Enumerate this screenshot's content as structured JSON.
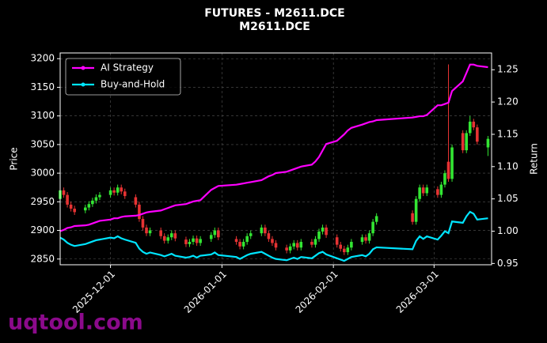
{
  "chart_data": {
    "type": "candlestick",
    "title": "FUTURES - M2611.DCE",
    "subtitle": "M2611.DCE",
    "ylabel": "Price",
    "y2label": "Return",
    "watermark": "uqtool.com",
    "x": [
      "2025-11-17",
      "2025-11-18",
      "2025-11-19",
      "2025-11-20",
      "2025-11-21",
      "2025-11-24",
      "2025-11-25",
      "2025-11-26",
      "2025-11-27",
      "2025-11-28",
      "2025-12-01",
      "2025-12-02",
      "2025-12-03",
      "2025-12-04",
      "2025-12-05",
      "2025-12-08",
      "2025-12-09",
      "2025-12-10",
      "2025-12-11",
      "2025-12-12",
      "2025-12-15",
      "2025-12-16",
      "2025-12-17",
      "2025-12-18",
      "2025-12-19",
      "2025-12-22",
      "2025-12-23",
      "2025-12-24",
      "2025-12-25",
      "2025-12-26",
      "2025-12-29",
      "2025-12-30",
      "2025-12-31",
      "2026-01-05",
      "2026-01-06",
      "2026-01-07",
      "2026-01-08",
      "2026-01-09",
      "2026-01-12",
      "2026-01-13",
      "2026-01-14",
      "2026-01-15",
      "2026-01-16",
      "2026-01-19",
      "2026-01-20",
      "2026-01-21",
      "2026-01-22",
      "2026-01-23",
      "2026-01-26",
      "2026-01-27",
      "2026-01-28",
      "2026-01-29",
      "2026-01-30",
      "2026-02-02",
      "2026-02-03",
      "2026-02-04",
      "2026-02-05",
      "2026-02-06",
      "2026-02-09",
      "2026-02-10",
      "2026-02-11",
      "2026-02-12",
      "2026-02-13",
      "2026-02-23",
      "2026-02-24",
      "2026-02-25",
      "2026-02-26",
      "2026-02-27",
      "2026-03-02",
      "2026-03-03",
      "2026-03-04",
      "2026-03-05",
      "2026-03-06",
      "2026-03-09",
      "2026-03-10",
      "2026-03-11",
      "2026-03-12",
      "2026-03-13",
      "2026-03-16"
    ],
    "candles": {
      "up_color": "#33e633",
      "down_color": "#e63333",
      "open": [
        2955,
        2970,
        2962,
        2945,
        2938,
        2935,
        2940,
        2946,
        2952,
        2958,
        2962,
        2970,
        2966,
        2975,
        2968,
        2958,
        2945,
        2920,
        2905,
        2895,
        2900,
        2890,
        2882,
        2888,
        2895,
        2884,
        2876,
        2880,
        2886,
        2878,
        2885,
        2892,
        2900,
        2885,
        2880,
        2872,
        2880,
        2890,
        2895,
        2905,
        2895,
        2885,
        2878,
        2870,
        2865,
        2872,
        2878,
        2870,
        2880,
        2875,
        2885,
        2898,
        2905,
        2888,
        2875,
        2868,
        2862,
        2870,
        2880,
        2888,
        2882,
        2895,
        2915,
        2930,
        2915,
        2955,
        2975,
        2965,
        2972,
        2962,
        2980,
        3020,
        2990,
        3070,
        3040,
        3070,
        3090,
        3080,
        3045
      ],
      "high": [
        2975,
        2975,
        2967,
        2950,
        2943,
        2945,
        2951,
        2957,
        2963,
        2967,
        2975,
        2975,
        2980,
        2980,
        2973,
        2963,
        2950,
        2925,
        2910,
        2905,
        2905,
        2895,
        2893,
        2900,
        2900,
        2889,
        2885,
        2891,
        2891,
        2890,
        2897,
        2905,
        2905,
        2890,
        2885,
        2885,
        2895,
        2900,
        2910,
        2910,
        2900,
        2890,
        2883,
        2875,
        2877,
        2883,
        2883,
        2885,
        2885,
        2890,
        2903,
        2910,
        2910,
        2893,
        2880,
        2873,
        2875,
        2885,
        2893,
        2893,
        2900,
        2920,
        2930,
        2935,
        2960,
        2980,
        2980,
        2980,
        2977,
        2985,
        3005,
        3190,
        3050,
        3075,
        3075,
        3100,
        3095,
        3085,
        3065
      ],
      "low": [
        2950,
        2957,
        2940,
        2933,
        2927,
        2930,
        2935,
        2941,
        2947,
        2953,
        2957,
        2961,
        2961,
        2963,
        2955,
        2940,
        2915,
        2900,
        2890,
        2890,
        2885,
        2877,
        2877,
        2883,
        2881,
        2871,
        2871,
        2875,
        2873,
        2873,
        2880,
        2887,
        2883,
        2875,
        2867,
        2867,
        2875,
        2885,
        2890,
        2890,
        2880,
        2873,
        2865,
        2860,
        2860,
        2867,
        2865,
        2865,
        2870,
        2870,
        2880,
        2893,
        2887,
        2870,
        2863,
        2857,
        2857,
        2865,
        2875,
        2877,
        2877,
        2890,
        2910,
        2910,
        2910,
        2950,
        2960,
        2960,
        2957,
        2957,
        2975,
        2985,
        2985,
        3035,
        3035,
        3065,
        3075,
        3050,
        3030
      ],
      "close": [
        2970,
        2962,
        2945,
        2938,
        2932,
        2940,
        2946,
        2952,
        2958,
        2962,
        2970,
        2966,
        2975,
        2968,
        2960,
        2945,
        2920,
        2905,
        2895,
        2900,
        2890,
        2882,
        2888,
        2895,
        2886,
        2876,
        2880,
        2886,
        2878,
        2885,
        2892,
        2900,
        2888,
        2880,
        2872,
        2880,
        2890,
        2895,
        2905,
        2895,
        2885,
        2878,
        2870,
        2865,
        2872,
        2878,
        2870,
        2880,
        2875,
        2885,
        2898,
        2905,
        2892,
        2875,
        2868,
        2862,
        2870,
        2880,
        2888,
        2882,
        2895,
        2915,
        2925,
        2915,
        2955,
        2975,
        2965,
        2975,
        2962,
        2980,
        3000,
        2990,
        3045,
        3040,
        3070,
        3090,
        3080,
        3055,
        3060
      ]
    },
    "series": [
      {
        "name": "AI Strategy",
        "color": "#ff00ff",
        "axis": "y2",
        "values": [
          1.0,
          1.002,
          1.005,
          1.006,
          1.008,
          1.009,
          1.01,
          1.012,
          1.014,
          1.016,
          1.018,
          1.02,
          1.02,
          1.022,
          1.023,
          1.024,
          1.025,
          1.027,
          1.029,
          1.03,
          1.032,
          1.034,
          1.036,
          1.038,
          1.04,
          1.042,
          1.044,
          1.046,
          1.047,
          1.048,
          1.064,
          1.067,
          1.07,
          1.072,
          1.073,
          1.074,
          1.075,
          1.076,
          1.079,
          1.082,
          1.085,
          1.087,
          1.09,
          1.092,
          1.094,
          1.096,
          1.098,
          1.1,
          1.103,
          1.108,
          1.115,
          1.125,
          1.135,
          1.14,
          1.145,
          1.15,
          1.156,
          1.16,
          1.165,
          1.167,
          1.169,
          1.17,
          1.172,
          1.176,
          1.177,
          1.178,
          1.178,
          1.18,
          1.195,
          1.195,
          1.197,
          1.199,
          1.217,
          1.232,
          1.245,
          1.258,
          1.258,
          1.256,
          1.254
        ]
      },
      {
        "name": "Buy-and-Hold",
        "color": "#00e5ff",
        "axis": "y2",
        "values": [
          0.99,
          0.987,
          0.982,
          0.979,
          0.977,
          0.98,
          0.982,
          0.984,
          0.986,
          0.987,
          0.99,
          0.989,
          0.992,
          0.989,
          0.987,
          0.982,
          0.973,
          0.968,
          0.965,
          0.967,
          0.963,
          0.961,
          0.963,
          0.965,
          0.962,
          0.959,
          0.96,
          0.962,
          0.959,
          0.962,
          0.964,
          0.967,
          0.963,
          0.96,
          0.957,
          0.96,
          0.963,
          0.965,
          0.968,
          0.965,
          0.962,
          0.959,
          0.957,
          0.955,
          0.957,
          0.959,
          0.957,
          0.96,
          0.958,
          0.962,
          0.966,
          0.968,
          0.964,
          0.958,
          0.956,
          0.954,
          0.957,
          0.96,
          0.963,
          0.961,
          0.965,
          0.972,
          0.975,
          0.972,
          0.985,
          0.992,
          0.988,
          0.992,
          0.987,
          0.993,
          1.0,
          0.997,
          1.015,
          1.013,
          1.023,
          1.03,
          1.027,
          1.018,
          1.02
        ]
      }
    ],
    "xlim": [
      "2025-11-17",
      "2026-03-17"
    ],
    "xticks": [
      "2025-12-01",
      "2026-01-01",
      "2026-02-01",
      "2026-03-01"
    ],
    "ylim": [
      2840,
      3210
    ],
    "yticks": [
      2850,
      2900,
      2950,
      3000,
      3050,
      3100,
      3150,
      3200
    ],
    "y2lim": [
      0.948,
      1.276
    ],
    "y2ticks": [
      0.95,
      {
        "value": 1.0,
        "label": "1.00"
      },
      1.05,
      {
        "value": 1.1,
        "label": "1.10"
      },
      1.15,
      {
        "value": 1.2,
        "label": "1.20"
      },
      1.25
    ],
    "grid": true,
    "legend": "upper left"
  }
}
